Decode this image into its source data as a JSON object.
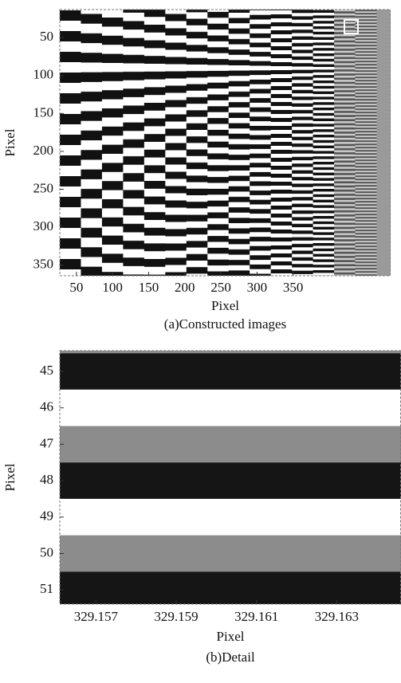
{
  "chart_data": [
    {
      "type": "image",
      "caption": "(a)Constructed images",
      "xlabel": "Pixel",
      "ylabel": "Pixel",
      "xlim": [
        27,
        485
      ],
      "xticks": [
        50,
        100,
        150,
        200,
        250,
        300,
        350
      ],
      "ylim": [
        13,
        364
      ],
      "yticks": [
        50,
        100,
        150,
        200,
        250,
        300,
        350
      ]
    },
    {
      "type": "detail",
      "caption": "(b)Detail",
      "xlabel": "Pixel",
      "ylabel": "Pixel",
      "xlim": [
        329.1561,
        329.1646
      ],
      "xticks": [
        329.157,
        329.159,
        329.161,
        329.163
      ],
      "ylim": [
        44.43,
        51.39
      ],
      "yticks": [
        45,
        46,
        47,
        48,
        49,
        50,
        51
      ]
    }
  ]
}
